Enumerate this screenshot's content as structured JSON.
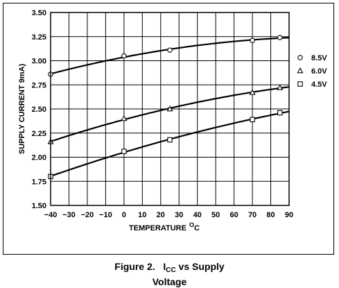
{
  "chart_data": {
    "type": "line",
    "title": "",
    "xlabel": "TEMPERATURE",
    "xlabel_unit_sup": "O",
    "xlabel_unit": "C",
    "ylabel": "SUPPLY CURRENT 9mA)",
    "xlim": [
      -40,
      90
    ],
    "ylim": [
      1.5,
      3.5
    ],
    "x_ticks": [
      -40,
      -30,
      -20,
      -10,
      0,
      10,
      20,
      30,
      40,
      50,
      60,
      70,
      80,
      90
    ],
    "x_tick_labels": [
      "−40",
      "−30",
      "−20",
      "−10",
      "0",
      "10",
      "20",
      "30",
      "40",
      "50",
      "60",
      "70",
      "80",
      "90"
    ],
    "y_ticks": [
      1.5,
      1.75,
      2.0,
      2.25,
      2.5,
      2.75,
      3.0,
      3.25,
      3.5
    ],
    "y_tick_labels": [
      "1.50",
      "1.75",
      "2.00",
      "2.25",
      "2.50",
      "2.75",
      "3.00",
      "3.25",
      "3.50"
    ],
    "grid": true,
    "legend_position": "right",
    "series": [
      {
        "name": "8.5V",
        "marker": "circle",
        "x": [
          -40,
          0,
          25,
          70,
          85
        ],
        "y": [
          2.86,
          3.05,
          3.11,
          3.21,
          3.24
        ]
      },
      {
        "name": "6.0V",
        "marker": "triangle",
        "x": [
          -40,
          0,
          25,
          70,
          85
        ],
        "y": [
          2.16,
          2.4,
          2.5,
          2.67,
          2.72
        ]
      },
      {
        "name": "4.5V",
        "marker": "square",
        "x": [
          -40,
          0,
          25,
          70,
          85
        ],
        "y": [
          1.8,
          2.06,
          2.18,
          2.39,
          2.46
        ]
      }
    ]
  },
  "caption": {
    "prefix": "Figure 2.",
    "icc_main": "I",
    "icc_sub": "CC",
    "suffix": " vs Supply",
    "line2": "Voltage"
  },
  "colors": {
    "line": "#000000",
    "background": "#ffffff"
  }
}
